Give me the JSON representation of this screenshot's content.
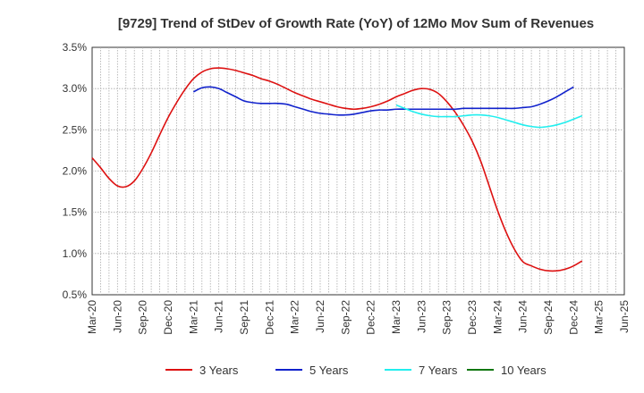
{
  "chart_data": {
    "type": "line",
    "title": "[9729]  Trend of StDev of Growth Rate (YoY) of 12Mo Mov Sum of Revenues",
    "xlabel": "",
    "ylabel": "",
    "ylim": [
      0.5,
      3.5
    ],
    "y_ticks": [
      0.5,
      1.0,
      1.5,
      2.0,
      2.5,
      3.0,
      3.5
    ],
    "y_tick_labels": [
      "0.5%",
      "1.0%",
      "1.5%",
      "2.0%",
      "2.5%",
      "3.0%",
      "3.5%"
    ],
    "x_tick_labels": [
      "Mar-20",
      "Jun-20",
      "Sep-20",
      "Dec-20",
      "Mar-21",
      "Jun-21",
      "Sep-21",
      "Dec-21",
      "Mar-22",
      "Jun-22",
      "Sep-22",
      "Dec-22",
      "Mar-23",
      "Jun-23",
      "Sep-23",
      "Dec-23",
      "Mar-24",
      "Jun-24",
      "Sep-24",
      "Dec-24",
      "Mar-25",
      "Jun-25"
    ],
    "grid": true,
    "legend_position": "bottom",
    "series": [
      {
        "name": "3 Years",
        "color": "#dd1111",
        "x": [
          0,
          1,
          2,
          3,
          4,
          5,
          6,
          7,
          8,
          9,
          10,
          11,
          12,
          13,
          14,
          15,
          16,
          17,
          18,
          19,
          20,
          21,
          22,
          23,
          24,
          25,
          26,
          27,
          28,
          29,
          30,
          31,
          32,
          33,
          34,
          35,
          36,
          37,
          38,
          39,
          40,
          41,
          42,
          43,
          44,
          45,
          46,
          47,
          48,
          49,
          50,
          51,
          52,
          53,
          54,
          55,
          56,
          57,
          58,
          59,
          60,
          61,
          62,
          63
        ],
        "values": [
          2.16,
          2.04,
          1.91,
          1.82,
          1.81,
          1.88,
          2.03,
          2.22,
          2.44,
          2.65,
          2.83,
          2.99,
          3.12,
          3.2,
          3.24,
          3.25,
          3.24,
          3.22,
          3.19,
          3.16,
          3.12,
          3.09,
          3.05,
          3.0,
          2.95,
          2.91,
          2.87,
          2.84,
          2.81,
          2.78,
          2.76,
          2.75,
          2.76,
          2.78,
          2.81,
          2.85,
          2.9,
          2.94,
          2.98,
          3.0,
          2.99,
          2.94,
          2.84,
          2.71,
          2.55,
          2.36,
          2.12,
          1.82,
          1.52,
          1.26,
          1.05,
          0.9,
          0.85,
          0.81,
          0.79,
          0.79,
          0.81,
          0.85,
          0.91,
          null,
          null,
          null,
          null,
          null
        ]
      },
      {
        "name": "5 Years",
        "color": "#1122cc",
        "x": [
          0,
          1,
          2,
          3,
          4,
          5,
          6,
          7,
          8,
          9,
          10,
          11,
          12,
          13,
          14,
          15,
          16,
          17,
          18,
          19,
          20,
          21,
          22,
          23,
          24,
          25,
          26,
          27,
          28,
          29,
          30,
          31,
          32,
          33,
          34,
          35,
          36,
          37,
          38,
          39,
          40,
          41,
          42,
          43,
          44,
          45,
          46,
          47,
          48,
          49,
          50,
          51,
          52,
          53,
          54,
          55,
          56,
          57,
          58,
          59,
          60,
          61,
          62,
          63
        ],
        "values": [
          null,
          null,
          null,
          null,
          null,
          null,
          null,
          null,
          null,
          null,
          null,
          null,
          2.96,
          3.01,
          3.02,
          3.0,
          2.95,
          2.9,
          2.85,
          2.83,
          2.82,
          2.82,
          2.82,
          2.81,
          2.78,
          2.75,
          2.72,
          2.7,
          2.69,
          2.68,
          2.68,
          2.69,
          2.71,
          2.73,
          2.74,
          2.74,
          2.75,
          2.75,
          2.75,
          2.75,
          2.75,
          2.75,
          2.75,
          2.75,
          2.76,
          2.76,
          2.76,
          2.76,
          2.76,
          2.76,
          2.76,
          2.77,
          2.78,
          2.81,
          2.85,
          2.9,
          2.96,
          3.02,
          null,
          null,
          null,
          null,
          null,
          null
        ]
      },
      {
        "name": "7 Years",
        "color": "#22eeee",
        "x": [
          0,
          1,
          2,
          3,
          4,
          5,
          6,
          7,
          8,
          9,
          10,
          11,
          12,
          13,
          14,
          15,
          16,
          17,
          18,
          19,
          20,
          21,
          22,
          23,
          24,
          25,
          26,
          27,
          28,
          29,
          30,
          31,
          32,
          33,
          34,
          35,
          36,
          37,
          38,
          39,
          40,
          41,
          42,
          43,
          44,
          45,
          46,
          47,
          48,
          49,
          50,
          51,
          52,
          53,
          54,
          55,
          56,
          57,
          58,
          59,
          60,
          61,
          62,
          63
        ],
        "values": [
          null,
          null,
          null,
          null,
          null,
          null,
          null,
          null,
          null,
          null,
          null,
          null,
          null,
          null,
          null,
          null,
          null,
          null,
          null,
          null,
          null,
          null,
          null,
          null,
          null,
          null,
          null,
          null,
          null,
          null,
          null,
          null,
          null,
          null,
          null,
          null,
          2.8,
          2.76,
          2.72,
          2.69,
          2.67,
          2.66,
          2.66,
          2.66,
          2.67,
          2.68,
          2.68,
          2.67,
          2.65,
          2.62,
          2.59,
          2.56,
          2.54,
          2.53,
          2.54,
          2.56,
          2.59,
          2.63,
          2.67,
          null,
          null,
          null,
          null,
          null
        ]
      },
      {
        "name": "10 Years",
        "color": "#117711",
        "x": [],
        "values": []
      }
    ]
  }
}
